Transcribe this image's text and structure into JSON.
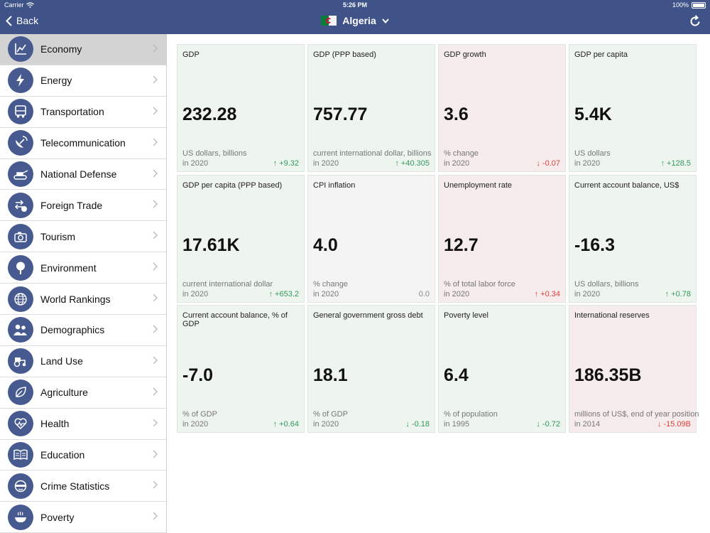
{
  "status_bar": {
    "carrier": "Carrier",
    "time": "5:26 PM",
    "battery": "100%"
  },
  "nav": {
    "back_label": "Back",
    "country": "Algeria"
  },
  "sidebar": {
    "items": [
      {
        "label": "Economy",
        "icon": "chart-icon",
        "active": true
      },
      {
        "label": "Energy",
        "icon": "lightning-icon"
      },
      {
        "label": "Transportation",
        "icon": "bus-icon"
      },
      {
        "label": "Telecommunication",
        "icon": "satellite-icon"
      },
      {
        "label": "National Defense",
        "icon": "tank-icon"
      },
      {
        "label": "Foreign Trade",
        "icon": "exchange-icon"
      },
      {
        "label": "Tourism",
        "icon": "camera-icon"
      },
      {
        "label": "Environment",
        "icon": "tree-icon"
      },
      {
        "label": "World Rankings",
        "icon": "globe-icon"
      },
      {
        "label": "Demographics",
        "icon": "people-icon"
      },
      {
        "label": "Land Use",
        "icon": "tractor-icon"
      },
      {
        "label": "Agriculture",
        "icon": "leaf-icon"
      },
      {
        "label": "Health",
        "icon": "heart-icon"
      },
      {
        "label": "Education",
        "icon": "book-icon"
      },
      {
        "label": "Crime Statistics",
        "icon": "mask-icon"
      },
      {
        "label": "Poverty",
        "icon": "bowl-icon"
      }
    ]
  },
  "cards": [
    {
      "title": "GDP",
      "value": "232.28",
      "unit": "US dollars, billions",
      "year": "in 2020",
      "change": "↑ +9.32",
      "tone": "good",
      "change_tone": "up"
    },
    {
      "title": "GDP (PPP based)",
      "value": "757.77",
      "unit": "current international dollar, billions",
      "year": "in 2020",
      "change": "↑ +40.305",
      "tone": "good",
      "change_tone": "up"
    },
    {
      "title": "GDP growth",
      "value": "3.6",
      "unit": "% change",
      "year": "in 2020",
      "change": "↓ -0.07",
      "tone": "bad",
      "change_tone": "down"
    },
    {
      "title": "GDP per capita",
      "value": "5.4K",
      "unit": "US dollars",
      "year": "in 2020",
      "change": "↑ +128.5",
      "tone": "good",
      "change_tone": "up"
    },
    {
      "title": "GDP per capita (PPP based)",
      "value": "17.61K",
      "unit": "current international dollar",
      "year": "in 2020",
      "change": "↑ +653.2",
      "tone": "good",
      "change_tone": "up"
    },
    {
      "title": "CPI inflation",
      "value": "4.0",
      "unit": "% change",
      "year": "in 2020",
      "change": "0.0",
      "tone": "neutral",
      "change_tone": "neutral"
    },
    {
      "title": "Unemployment rate",
      "value": "12.7",
      "unit": "% of total labor force",
      "year": "in 2020",
      "change": "↑ +0.34",
      "tone": "bad",
      "change_tone": "down"
    },
    {
      "title": "Current account balance, US$",
      "value": "-16.3",
      "unit": "US dollars, billions",
      "year": "in 2020",
      "change": "↑ +0.78",
      "tone": "good",
      "change_tone": "up"
    },
    {
      "title": "Current account balance, % of GDP",
      "value": "-7.0",
      "unit": "% of GDP",
      "year": "in 2020",
      "change": "↑ +0.64",
      "tone": "good",
      "change_tone": "up"
    },
    {
      "title": "General government gross debt",
      "value": "18.1",
      "unit": "% of GDP",
      "year": "in 2020",
      "change": "↓ -0.18",
      "tone": "good",
      "change_tone": "down-good"
    },
    {
      "title": "Poverty level",
      "value": "6.4",
      "unit": "% of population",
      "year": "in 1995",
      "change": "↓ -0.72",
      "tone": "good",
      "change_tone": "down-good"
    },
    {
      "title": "International reserves",
      "value": "186.35B",
      "unit": "millions of US$, end of year position",
      "year": "in 2014",
      "change": "↓ -15.09B",
      "tone": "bad",
      "change_tone": "down"
    }
  ],
  "colors": {
    "nav_bg": "#3f5389",
    "icon_bg": "#475a8f",
    "good": "#eef5ee",
    "bad": "#f6ecec",
    "up": "#2f9a5c",
    "down": "#e0403c"
  }
}
